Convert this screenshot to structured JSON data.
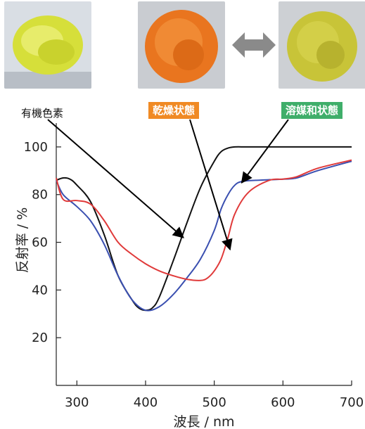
{
  "labels": {
    "organic": "有機色素",
    "dry": "乾燥状態",
    "solvated": "溶媒和状態"
  },
  "colors": {
    "dry_label_bg": "#f08a24",
    "solvated_label_bg": "#3fae6a",
    "powder_yellow": "#d6df3a",
    "powder_orange": "#e9751f",
    "powder_olive": "#c8c438",
    "arrow_gray": "#8a8a8a"
  },
  "chart_data": {
    "type": "line",
    "xlabel": "波長 / nm",
    "ylabel": "反射率 / %",
    "xlim": [
      270,
      700
    ],
    "ylim": [
      0,
      110
    ],
    "xticks": [
      300,
      400,
      500,
      600,
      700
    ],
    "yticks": [
      20,
      40,
      60,
      80,
      100
    ],
    "grid": false,
    "series": [
      {
        "color": "#111111",
        "x": [
          270,
          280,
          290,
          300,
          320,
          340,
          360,
          380,
          390,
          400,
          410,
          420,
          440,
          460,
          480,
          500,
          510,
          520,
          530,
          550,
          600,
          650,
          700
        ],
        "y": [
          86,
          87,
          86.5,
          84,
          77,
          63,
          46,
          36,
          32.5,
          31.5,
          32.5,
          37,
          52,
          68,
          83,
          94,
          98,
          99.5,
          100,
          100,
          100,
          100,
          100
        ]
      },
      {
        "color": "#3a4fb0",
        "x": [
          270,
          280,
          300,
          320,
          340,
          360,
          380,
          400,
          420,
          440,
          460,
          480,
          500,
          510,
          520,
          530,
          540,
          560,
          600,
          620,
          650,
          700
        ],
        "y": [
          86,
          80,
          75,
          69,
          59,
          46,
          36,
          31.5,
          33,
          38,
          45,
          53,
          65,
          74,
          80,
          84,
          85.5,
          86,
          86.5,
          87,
          90,
          94
        ]
      },
      {
        "color": "#e03a3a",
        "x": [
          270,
          280,
          300,
          320,
          340,
          360,
          380,
          400,
          420,
          440,
          460,
          480,
          490,
          500,
          510,
          520,
          530,
          550,
          580,
          600,
          620,
          650,
          700
        ],
        "y": [
          87,
          78,
          77.5,
          76,
          69,
          60,
          55,
          51,
          48,
          46,
          44.5,
          44,
          45,
          48,
          53,
          62,
          72,
          81,
          86,
          86.5,
          87.5,
          91,
          94.5
        ]
      }
    ]
  }
}
